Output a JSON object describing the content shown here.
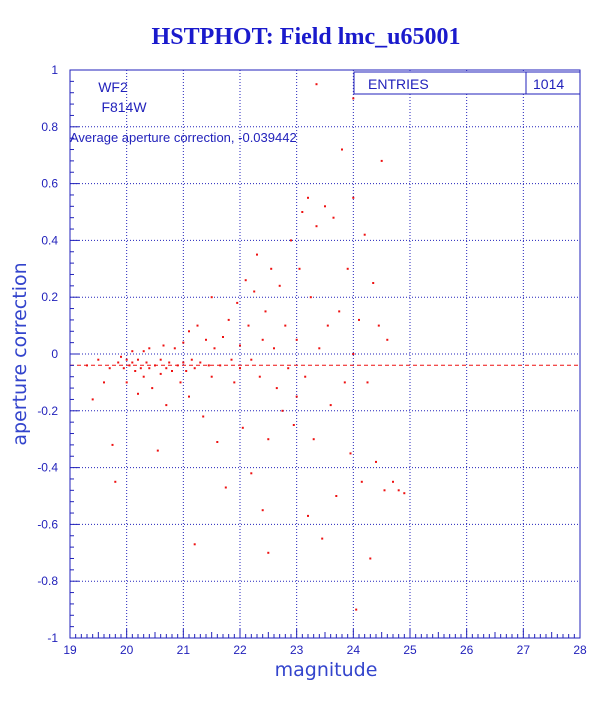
{
  "title": "HSTPHOT: Field lmc_u65001",
  "annotations": {
    "camera": "WF2",
    "filter": "F814W",
    "average_label": "Average aperture correction, -0.039442"
  },
  "stats_box": {
    "label": "ENTRIES",
    "value": "1014"
  },
  "colors": {
    "axis": "#2222bb",
    "points": "#ee1111",
    "mean_line": "#ee1111",
    "title": "#1a1acc"
  },
  "chart_data": {
    "type": "scatter",
    "title": "HSTPHOT: Field lmc_u65001",
    "xlabel": "magnitude",
    "ylabel": "aperture correction",
    "xlim": [
      19,
      28
    ],
    "ylim": [
      -1,
      1
    ],
    "x_ticks": [
      19,
      20,
      21,
      22,
      23,
      24,
      25,
      26,
      27,
      28
    ],
    "y_ticks": [
      -1,
      -0.8,
      -0.6,
      -0.4,
      -0.2,
      0,
      0.2,
      0.4,
      0.6,
      0.8,
      1
    ],
    "grid": true,
    "mean_line_y": -0.039442,
    "entries": 1014,
    "sample_points": [
      [
        19.3,
        -0.04
      ],
      [
        19.4,
        -0.16
      ],
      [
        19.5,
        -0.02
      ],
      [
        19.6,
        -0.1
      ],
      [
        19.7,
        -0.05
      ],
      [
        19.75,
        -0.32
      ],
      [
        19.8,
        -0.45
      ],
      [
        19.85,
        -0.03
      ],
      [
        19.9,
        -0.01
      ],
      [
        19.95,
        -0.05
      ],
      [
        20.0,
        -0.02
      ],
      [
        20.0,
        -0.1
      ],
      [
        20.05,
        -0.04
      ],
      [
        20.1,
        -0.03
      ],
      [
        20.1,
        0.01
      ],
      [
        20.15,
        -0.06
      ],
      [
        20.2,
        -0.02
      ],
      [
        20.2,
        -0.14
      ],
      [
        20.25,
        -0.05
      ],
      [
        20.3,
        0.01
      ],
      [
        20.3,
        -0.08
      ],
      [
        20.35,
        -0.03
      ],
      [
        20.4,
        -0.05
      ],
      [
        20.4,
        0.02
      ],
      [
        20.45,
        -0.12
      ],
      [
        20.5,
        -0.04
      ],
      [
        20.55,
        -0.34
      ],
      [
        20.6,
        -0.02
      ],
      [
        20.6,
        -0.07
      ],
      [
        20.65,
        0.03
      ],
      [
        20.7,
        -0.05
      ],
      [
        20.7,
        -0.18
      ],
      [
        20.75,
        -0.03
      ],
      [
        20.8,
        -0.06
      ],
      [
        20.85,
        0.02
      ],
      [
        20.9,
        -0.04
      ],
      [
        20.95,
        -0.1
      ],
      [
        21.0,
        -0.03
      ],
      [
        21.0,
        0.04
      ],
      [
        21.05,
        -0.06
      ],
      [
        21.1,
        -0.15
      ],
      [
        21.1,
        0.08
      ],
      [
        21.15,
        -0.02
      ],
      [
        21.2,
        -0.05
      ],
      [
        21.2,
        -0.67
      ],
      [
        21.25,
        0.1
      ],
      [
        21.3,
        -0.03
      ],
      [
        21.35,
        -0.22
      ],
      [
        21.4,
        0.05
      ],
      [
        21.45,
        -0.04
      ],
      [
        21.5,
        0.2
      ],
      [
        21.5,
        -0.08
      ],
      [
        21.55,
        0.02
      ],
      [
        21.6,
        -0.31
      ],
      [
        21.65,
        -0.04
      ],
      [
        21.7,
        0.06
      ],
      [
        21.75,
        -0.47
      ],
      [
        21.8,
        0.12
      ],
      [
        21.85,
        -0.02
      ],
      [
        21.9,
        -0.1
      ],
      [
        21.95,
        0.18
      ],
      [
        22.0,
        -0.05
      ],
      [
        22.0,
        0.03
      ],
      [
        22.05,
        -0.26
      ],
      [
        22.1,
        0.26
      ],
      [
        22.15,
        0.1
      ],
      [
        22.2,
        -0.02
      ],
      [
        22.2,
        -0.42
      ],
      [
        22.25,
        0.22
      ],
      [
        22.3,
        0.35
      ],
      [
        22.35,
        -0.08
      ],
      [
        22.4,
        -0.55
      ],
      [
        22.4,
        0.05
      ],
      [
        22.45,
        0.15
      ],
      [
        22.5,
        -0.3
      ],
      [
        22.5,
        -0.7
      ],
      [
        22.55,
        0.3
      ],
      [
        22.6,
        0.02
      ],
      [
        22.65,
        -0.12
      ],
      [
        22.7,
        0.24
      ],
      [
        22.75,
        -0.2
      ],
      [
        22.8,
        0.1
      ],
      [
        22.85,
        -0.05
      ],
      [
        22.9,
        0.4
      ],
      [
        22.95,
        -0.25
      ],
      [
        23.0,
        0.05
      ],
      [
        23.0,
        -0.15
      ],
      [
        23.05,
        0.3
      ],
      [
        23.1,
        0.5
      ],
      [
        23.15,
        -0.08
      ],
      [
        23.2,
        0.55
      ],
      [
        23.2,
        -0.57
      ],
      [
        23.25,
        0.2
      ],
      [
        23.3,
        -0.3
      ],
      [
        23.35,
        0.45
      ],
      [
        23.4,
        0.02
      ],
      [
        23.45,
        -0.65
      ],
      [
        23.5,
        0.52
      ],
      [
        23.55,
        0.1
      ],
      [
        23.6,
        -0.18
      ],
      [
        23.65,
        0.48
      ],
      [
        23.7,
        -0.5
      ],
      [
        23.75,
        0.15
      ],
      [
        23.8,
        0.72
      ],
      [
        23.85,
        -0.1
      ],
      [
        23.9,
        0.3
      ],
      [
        23.95,
        -0.35
      ],
      [
        24.0,
        0.0
      ],
      [
        24.0,
        0.55
      ],
      [
        24.05,
        -0.9
      ],
      [
        24.1,
        0.12
      ],
      [
        24.15,
        -0.45
      ],
      [
        24.2,
        0.42
      ],
      [
        24.25,
        -0.1
      ],
      [
        24.3,
        -0.72
      ],
      [
        24.35,
        0.25
      ],
      [
        24.4,
        -0.38
      ],
      [
        24.45,
        0.1
      ],
      [
        24.5,
        0.68
      ],
      [
        24.55,
        -0.48
      ],
      [
        24.6,
        0.05
      ],
      [
        24.7,
        -0.45
      ],
      [
        24.8,
        -0.48
      ],
      [
        24.9,
        -0.49
      ],
      [
        23.35,
        0.95
      ],
      [
        24.0,
        0.9
      ]
    ]
  }
}
